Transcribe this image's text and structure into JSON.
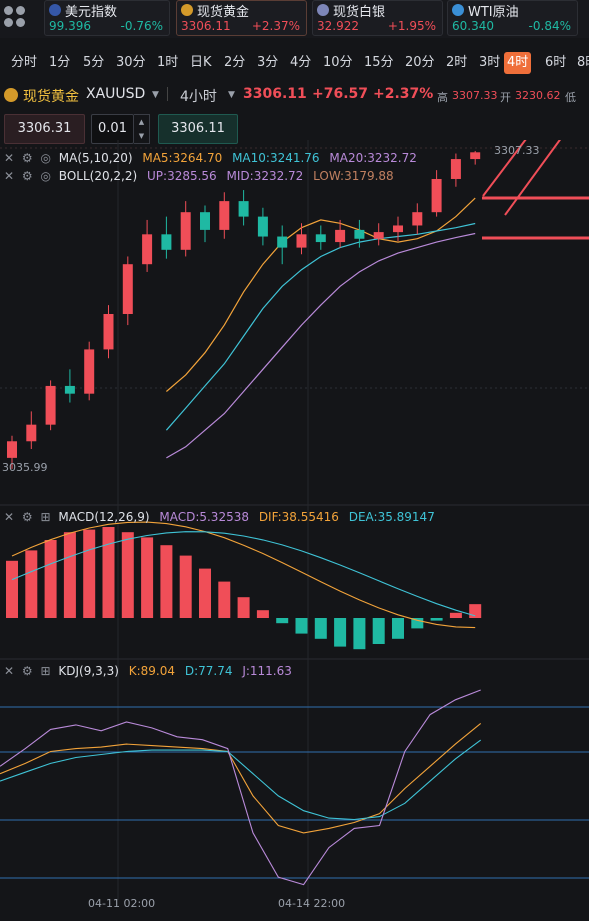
{
  "tickers": [
    {
      "name": "美元指数",
      "price": "99.396",
      "change": "-0.76%",
      "dir": "down",
      "icon": "us-flag-icon",
      "icon_color": "#3557a8",
      "active": false
    },
    {
      "name": "现货黄金",
      "price": "3306.11",
      "change": "+2.37%",
      "dir": "up",
      "icon": "gold-coin-icon",
      "icon_color": "#d49a2a",
      "active": true
    },
    {
      "name": "现货白银",
      "price": "32.922",
      "change": "+1.95%",
      "dir": "up",
      "icon": "silver-bar-icon",
      "icon_color": "#7d86b8",
      "active": false
    },
    {
      "name": "WTI原油",
      "price": "60.340",
      "change": "-0.84%",
      "dir": "down",
      "icon": "oil-barrel-icon",
      "icon_color": "#3a8fd6",
      "active": false
    }
  ],
  "periods": [
    "分时",
    "1分",
    "5分",
    "30分",
    "1时",
    "日K",
    "2分",
    "3分",
    "4分",
    "10分",
    "15分",
    "20分",
    "2时",
    "3时",
    "4时",
    "6时",
    "8时"
  ],
  "selected_period": "4时",
  "symbol": {
    "name": "现货黄金",
    "code": "XAUUSD",
    "interval": "4小时",
    "price": "3306.11",
    "change": "+76.57",
    "change_pct": "+2.37%",
    "high_label": "高",
    "high": "3307.33",
    "open_label": "开",
    "open": "3230.62",
    "low_label": "低"
  },
  "order": {
    "sell_price": "3306.31",
    "lots": "0.01",
    "buy_price": "3306.11"
  },
  "main_indicators": {
    "ma_name": "MA(5,10,20)",
    "ma5": "MA5:3264.70",
    "ma10": "MA10:3241.76",
    "ma20": "MA20:3232.72",
    "boll_name": "BOLL(20,2,2)",
    "boll_up": "UP:3285.56",
    "boll_mid": "MID:3232.72",
    "boll_low": "LOW:3179.88",
    "high_marker": "3307.33",
    "low_marker": "3035.99"
  },
  "macd": {
    "name": "MACD(12,26,9)",
    "macd": "MACD:5.32538",
    "dif": "DIF:38.55416",
    "dea": "DEA:35.89147"
  },
  "kdj": {
    "name": "KDJ(9,3,3)",
    "k": "K:89.04",
    "d": "D:77.74",
    "j": "J:111.63"
  },
  "x_axis": [
    "04-11 02:00",
    "04-14 22:00"
  ],
  "colors": {
    "up": "#f04e58",
    "down": "#1fb9a3",
    "ma5": "#f2a33a",
    "ma10": "#3fc3d6",
    "ma20": "#b98ad9",
    "accent": "#ef6f3a"
  },
  "chart_data": {
    "type": "candlestick",
    "series": [
      {
        "name": "MA5",
        "values": [
          3090,
          3105,
          3125,
          3150,
          3180,
          3205,
          3225,
          3238,
          3245,
          3242,
          3236,
          3228,
          3225,
          3228,
          3235,
          3248,
          3264.7
        ]
      },
      {
        "name": "MA10",
        "values": [
          3055,
          3075,
          3095,
          3115,
          3140,
          3165,
          3185,
          3200,
          3212,
          3220,
          3225,
          3228,
          3230,
          3232,
          3235,
          3238,
          3241.76
        ]
      },
      {
        "name": "MA20",
        "values": [
          3030,
          3040,
          3055,
          3070,
          3090,
          3110,
          3130,
          3150,
          3168,
          3185,
          3198,
          3208,
          3215,
          3220,
          3225,
          3229,
          3232.72
        ]
      }
    ],
    "candles": [
      [
        3030,
        3045,
        3020,
        3050
      ],
      [
        3045,
        3060,
        3038,
        3072
      ],
      [
        3060,
        3095,
        3055,
        3100
      ],
      [
        3095,
        3088,
        3080,
        3110
      ],
      [
        3088,
        3128,
        3082,
        3135
      ],
      [
        3128,
        3160,
        3120,
        3168
      ],
      [
        3160,
        3205,
        3150,
        3212
      ],
      [
        3205,
        3232,
        3198,
        3245
      ],
      [
        3232,
        3218,
        3210,
        3248
      ],
      [
        3218,
        3252,
        3212,
        3262
      ],
      [
        3252,
        3236,
        3225,
        3258
      ],
      [
        3236,
        3262,
        3228,
        3270
      ],
      [
        3262,
        3248,
        3240,
        3272
      ],
      [
        3248,
        3230,
        3222,
        3256
      ],
      [
        3230,
        3220,
        3205,
        3240
      ],
      [
        3220,
        3232,
        3214,
        3242
      ],
      [
        3232,
        3225,
        3218,
        3240
      ],
      [
        3225,
        3236,
        3220,
        3245
      ],
      [
        3236,
        3228,
        3220,
        3245
      ],
      [
        3228,
        3234,
        3222,
        3242
      ],
      [
        3234,
        3240,
        3226,
        3248
      ],
      [
        3240,
        3252,
        3232,
        3260
      ],
      [
        3252,
        3282,
        3248,
        3290
      ],
      [
        3282,
        3300,
        3275,
        3305
      ],
      [
        3300,
        3306.11,
        3295,
        3307.33
      ]
    ],
    "macd_hist": [
      22,
      26,
      30,
      33,
      34,
      35,
      33,
      31,
      28,
      24,
      19,
      14,
      8,
      3,
      -2,
      -6,
      -8,
      -11,
      -12,
      -10,
      -8,
      -4,
      -1,
      2,
      5.32538
    ],
    "kdj_k": [
      55,
      62,
      70,
      72,
      73,
      75,
      74,
      73,
      72,
      70,
      40,
      20,
      15,
      18,
      22,
      28,
      45,
      60,
      75,
      89.04
    ],
    "kdj_d": [
      50,
      56,
      62,
      66,
      68,
      70,
      71,
      71,
      71,
      70,
      55,
      40,
      30,
      25,
      24,
      26,
      35,
      50,
      65,
      77.74
    ],
    "kdj_j": [
      60,
      72,
      85,
      88,
      84,
      90,
      86,
      80,
      78,
      72,
      15,
      -15,
      -20,
      5,
      18,
      20,
      70,
      95,
      105,
      111.63
    ]
  }
}
